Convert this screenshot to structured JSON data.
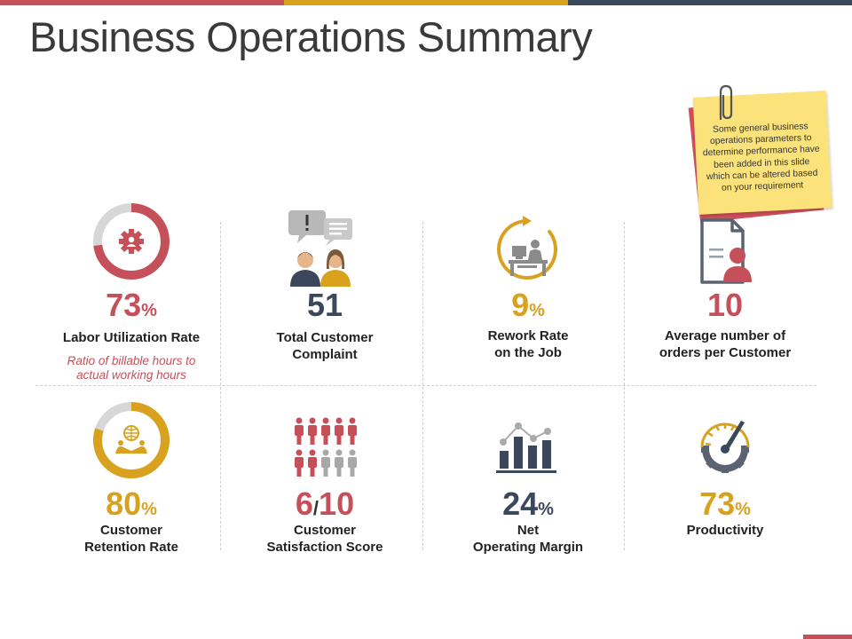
{
  "title": "Business Operations Summary",
  "colors": {
    "red": "#c6505a",
    "gold": "#d8a21f",
    "navy": "#3b475b",
    "gray": "#8a8a8a",
    "note": "#fbe27a",
    "note_back": "#cf4f5b"
  },
  "note": "Some general business operations parameters to determine performance have been added in this slide which can be altered based on your requirement",
  "metrics": [
    {
      "value": "73",
      "unit": "%",
      "label_lines": [
        "Labor Utilization Rate"
      ],
      "sub_lines": [
        "Ratio of billable hours to",
        "actual working hours"
      ],
      "icon": "gear-donut-icon",
      "progress": 73
    },
    {
      "value": "51",
      "unit": "",
      "label_lines": [
        "Total Customer",
        "Complaint"
      ],
      "icon": "customers-complaint-icon"
    },
    {
      "value": "9",
      "unit": "%",
      "label_lines": [
        "Rework Rate",
        "on the Job"
      ],
      "icon": "rework-desk-icon"
    },
    {
      "value": "10",
      "unit": "",
      "label_lines": [
        "Average number of",
        "orders per Customer"
      ],
      "icon": "customer-document-icon"
    },
    {
      "value": "80",
      "unit": "%",
      "label_lines": [
        "Customer",
        "Retention Rate"
      ],
      "icon": "retention-donut-icon",
      "progress": 80
    },
    {
      "value_a": "6",
      "slash": "/",
      "value_b": "10",
      "label_lines": [
        "Customer",
        "Satisfaction Score"
      ],
      "icon": "people-rating-icon",
      "rated": 6,
      "total": 10
    },
    {
      "value": "24",
      "unit": "%",
      "label_lines": [
        "Net",
        "Operating Margin"
      ],
      "icon": "bar-line-chart-icon"
    },
    {
      "value": "73",
      "unit": "%",
      "label_lines": [
        "Productivity"
      ],
      "icon": "speedometer-gear-icon"
    }
  ]
}
